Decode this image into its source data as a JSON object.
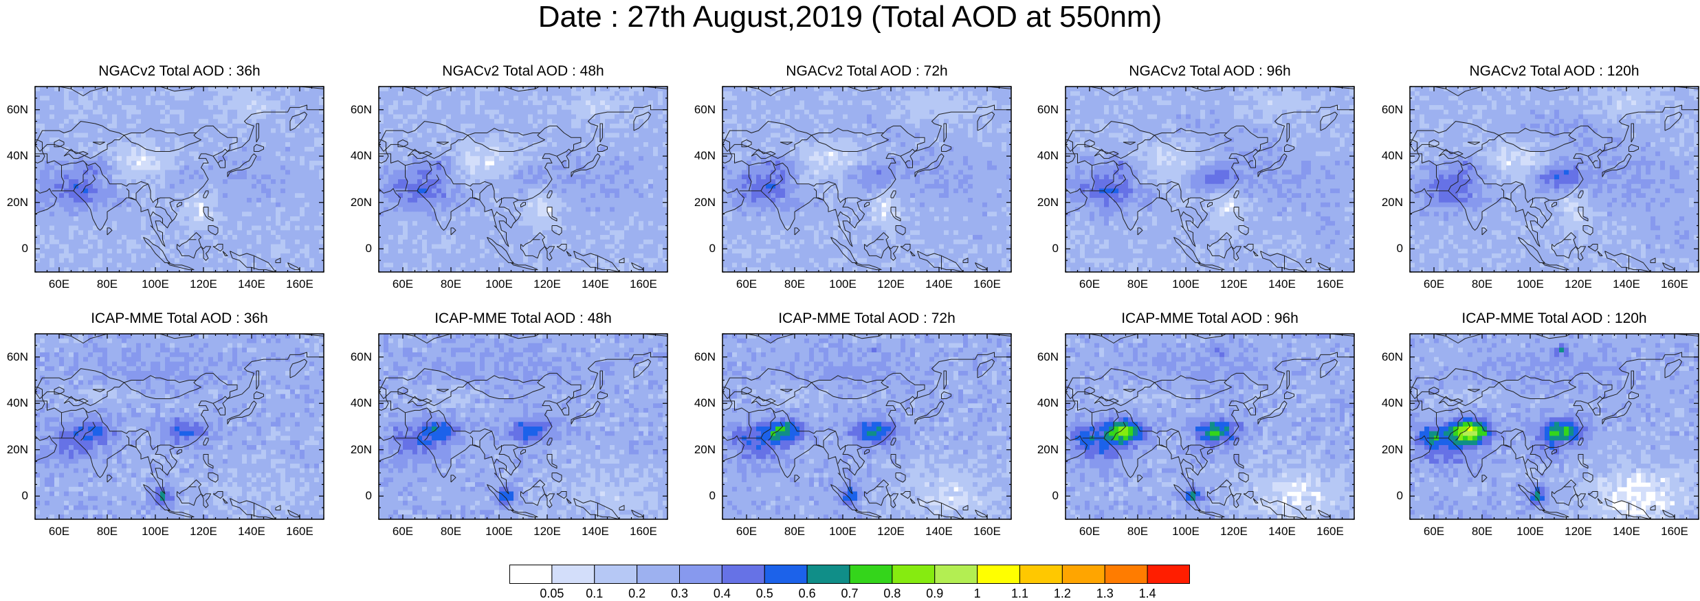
{
  "title": "Date : 27th August,2019 (Total AOD at 550nm)",
  "lat_ticks": [
    "60N",
    "40N",
    "20N",
    "0"
  ],
  "lat_values": [
    60,
    40,
    20,
    0
  ],
  "lon_ticks": [
    "60E",
    "80E",
    "100E",
    "120E",
    "140E",
    "160E"
  ],
  "lon_values": [
    60,
    80,
    100,
    120,
    140,
    160
  ],
  "extent": {
    "lon": [
      50,
      170
    ],
    "lat": [
      -10,
      70
    ]
  },
  "colors": {
    "bins": [
      "#ffffff",
      "#d3defa",
      "#b6c8f5",
      "#9db1f0",
      "#8799ee",
      "#6672e6",
      "#1c62ea",
      "#108e88",
      "#34d51b",
      "#86eb10",
      "#b3ee52",
      "#ffff00",
      "#ffc800",
      "#ffa500",
      "#ff7c00",
      "#ff1e00"
    ],
    "coast": "#202020"
  },
  "colorbar": {
    "labels": [
      "0.05",
      "0.1",
      "0.2",
      "0.3",
      "0.4",
      "0.5",
      "0.6",
      "0.7",
      "0.8",
      "0.9",
      "1",
      "1.1",
      "1.2",
      "1.3",
      "1.4"
    ]
  },
  "panels": [
    {
      "title": "NGACv2 Total AOD : 36h",
      "model": "ngac",
      "lead": 36
    },
    {
      "title": "NGACv2 Total AOD : 48h",
      "model": "ngac",
      "lead": 48
    },
    {
      "title": "NGACv2 Total AOD : 72h",
      "model": "ngac",
      "lead": 72
    },
    {
      "title": "NGACv2 Total AOD : 96h",
      "model": "ngac",
      "lead": 96
    },
    {
      "title": "NGACv2 Total AOD : 120h",
      "model": "ngac",
      "lead": 120
    },
    {
      "title": "ICAP-MME Total AOD : 36h",
      "model": "icap",
      "lead": 36
    },
    {
      "title": "ICAP-MME Total AOD : 48h",
      "model": "icap",
      "lead": 48
    },
    {
      "title": "ICAP-MME Total AOD : 72h",
      "model": "icap",
      "lead": 72
    },
    {
      "title": "ICAP-MME Total AOD : 96h",
      "model": "icap",
      "lead": 96
    },
    {
      "title": "ICAP-MME Total AOD : 120h",
      "model": "icap",
      "lead": 120
    }
  ]
}
